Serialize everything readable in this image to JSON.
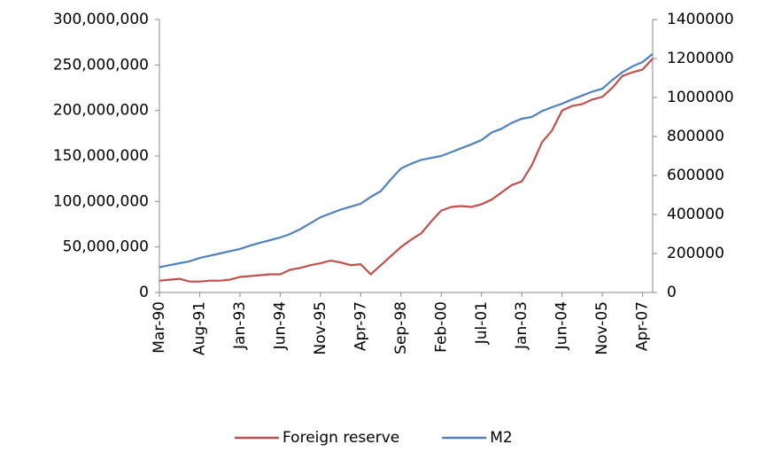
{
  "chart_data": {
    "type": "line",
    "categories": [
      "Mar-90",
      null,
      null,
      null,
      "Aug-91",
      null,
      null,
      null,
      "Jan-93",
      null,
      null,
      null,
      "Jun-94",
      null,
      null,
      null,
      "Nov-95",
      null,
      null,
      null,
      "Apr-97",
      null,
      null,
      null,
      "Sep-98",
      null,
      null,
      null,
      "Feb-00",
      null,
      null,
      null,
      "Jul-01",
      null,
      null,
      null,
      "Jan-03",
      null,
      null,
      null,
      "Jun-04",
      null,
      null,
      null,
      "Nov-05",
      null,
      null,
      null,
      "Apr-07",
      null
    ],
    "series": [
      {
        "name": "Foreign reserve",
        "color": "#c0504d",
        "axis": "y",
        "values": [
          13000000,
          14000000,
          15000000,
          12000000,
          12000000,
          13000000,
          13000000,
          14000000,
          17000000,
          18000000,
          19000000,
          20000000,
          20000000,
          25000000,
          27000000,
          30000000,
          32000000,
          35000000,
          33000000,
          30000000,
          31000000,
          20000000,
          30000000,
          40000000,
          50000000,
          58000000,
          65000000,
          78000000,
          90000000,
          94000000,
          95000000,
          94000000,
          97000000,
          102000000,
          110000000,
          118000000,
          122000000,
          140000000,
          165000000,
          178000000,
          200000000,
          205000000,
          207000000,
          212000000,
          215000000,
          225000000,
          238000000,
          242000000,
          245000000,
          257000000
        ]
      },
      {
        "name": "M2",
        "color": "#4f81bd",
        "axis": "y2",
        "values": [
          130000,
          140000,
          150000,
          160000,
          177000,
          188000,
          200000,
          212000,
          223000,
          240000,
          255000,
          268000,
          282000,
          300000,
          325000,
          355000,
          386000,
          405000,
          425000,
          440000,
          455000,
          490000,
          520000,
          580000,
          636000,
          660000,
          680000,
          690000,
          700000,
          720000,
          740000,
          760000,
          782000,
          820000,
          840000,
          870000,
          891000,
          900000,
          930000,
          950000,
          968000,
          990000,
          1010000,
          1030000,
          1045000,
          1090000,
          1130000,
          1160000,
          1182000,
          1223000
        ]
      }
    ],
    "ylim": [
      0,
      300000000
    ],
    "yticks": [
      0,
      {
        "value": 50000000,
        "label": "50,000,000"
      },
      {
        "value": 100000000,
        "label": "100,000,000"
      },
      {
        "value": 150000000,
        "label": "150,000,000"
      },
      {
        "value": 200000000,
        "label": "200,000,000"
      },
      {
        "value": 250000000,
        "label": "250,000,000"
      },
      {
        "value": 300000000,
        "label": "300,000,000"
      }
    ],
    "y2lim": [
      0,
      1400000
    ],
    "y2ticks": [
      0,
      200000,
      400000,
      600000,
      800000,
      1000000,
      1200000,
      1400000
    ],
    "legend": "bottom"
  }
}
